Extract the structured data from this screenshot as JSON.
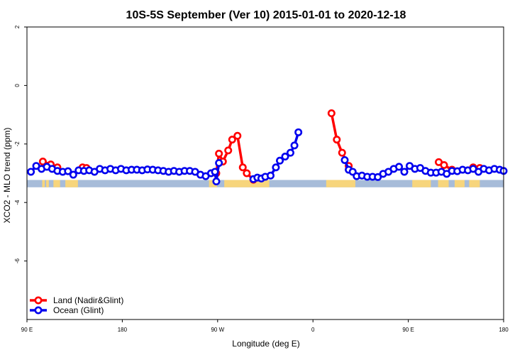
{
  "chart_data": {
    "type": "line",
    "title": "10S-5S September (Ver 10)   2015-01-01 to 2020-12-18",
    "xlabel": "Longitude (deg E)",
    "ylabel": "XCO2 - MLO trend (ppm)",
    "xlim": [
      90,
      450
    ],
    "ylim": [
      -8,
      2
    ],
    "x_ticks": [
      {
        "value": 90,
        "label": "90 E"
      },
      {
        "value": 162,
        "label": "180"
      },
      {
        "value": 234,
        "label": "90 W"
      },
      {
        "value": 306,
        "label": "0"
      },
      {
        "value": 378,
        "label": "90 E"
      },
      {
        "value": 450,
        "label": "180"
      }
    ],
    "y_ticks": [
      {
        "value": 2,
        "label": "2"
      },
      {
        "value": 0,
        "label": "0"
      },
      {
        "value": -2,
        "label": "-2"
      },
      {
        "value": -4,
        "label": "-4"
      },
      {
        "value": -6,
        "label": "-6"
      }
    ],
    "legend_position": "bottom-left",
    "map_strip": {
      "y_top": -3.23,
      "y_bottom": -3.48,
      "ocean_color": "#a7bcd9",
      "land_color": "#f7d57c",
      "land_ranges": [
        [
          101.5,
          103.5
        ],
        [
          104.5,
          106.5
        ],
        [
          110,
          115
        ],
        [
          119,
          128.5
        ],
        [
          227.5,
          233.5
        ],
        [
          239,
          273
        ],
        [
          316,
          338
        ],
        [
          381,
          395
        ],
        [
          400.5,
          408.5
        ],
        [
          413,
          420.5
        ],
        [
          424,
          432
        ]
      ]
    },
    "series": [
      {
        "name": "Land (Nadir&Glint)",
        "color": "#ff0000",
        "segments": [
          [
            [
              102,
              -2.6
            ],
            [
              108,
              -2.7
            ],
            [
              113,
              -2.8
            ]
          ],
          [
            [
              132,
              -2.8
            ],
            [
              135,
              -2.82
            ]
          ],
          [
            [
              233,
              -3.0
            ],
            [
              235,
              -2.33
            ],
            [
              238,
              -2.6
            ],
            [
              242,
              -2.22
            ],
            [
              245,
              -1.85
            ],
            [
              249,
              -1.72
            ],
            [
              253,
              -2.8
            ],
            [
              256,
              -3.0
            ],
            [
              261,
              -3.22
            ]
          ],
          [
            [
              320,
              -0.95
            ],
            [
              324,
              -1.85
            ],
            [
              328,
              -2.3
            ],
            [
              333,
              -2.75
            ]
          ],
          [
            [
              401,
              -2.62
            ],
            [
              405,
              -2.72
            ],
            [
              411,
              -2.88
            ]
          ],
          [
            [
              427,
              -2.8
            ],
            [
              432,
              -2.82
            ]
          ]
        ]
      },
      {
        "name": "Ocean (Glint)",
        "color": "#0000ee",
        "segments": [
          [
            [
              93,
              -2.95
            ],
            [
              97,
              -2.75
            ],
            [
              101,
              -2.85
            ],
            [
              105,
              -2.78
            ],
            [
              109,
              -2.85
            ],
            [
              113,
              -2.92
            ],
            [
              117,
              -2.95
            ],
            [
              121,
              -2.93
            ],
            [
              125,
              -3.05
            ],
            [
              129,
              -2.9
            ],
            [
              133,
              -2.92
            ],
            [
              137,
              -2.9
            ],
            [
              141,
              -2.95
            ],
            [
              145,
              -2.85
            ],
            [
              149,
              -2.9
            ],
            [
              153,
              -2.85
            ],
            [
              157,
              -2.9
            ],
            [
              161,
              -2.85
            ],
            [
              165,
              -2.9
            ],
            [
              169,
              -2.88
            ],
            [
              173,
              -2.88
            ],
            [
              177,
              -2.9
            ],
            [
              181,
              -2.87
            ],
            [
              185,
              -2.88
            ],
            [
              189,
              -2.9
            ],
            [
              193,
              -2.92
            ],
            [
              197,
              -2.95
            ],
            [
              201,
              -2.92
            ],
            [
              205,
              -2.95
            ],
            [
              209,
              -2.92
            ],
            [
              213,
              -2.92
            ],
            [
              217,
              -2.95
            ],
            [
              221,
              -3.05
            ],
            [
              225,
              -3.1
            ],
            [
              229,
              -3.0
            ],
            [
              232,
              -2.95
            ],
            [
              233,
              -3.28
            ],
            [
              235,
              -2.65
            ]
          ],
          [
            [
              261,
              -3.2
            ],
            [
              264,
              -3.15
            ],
            [
              267,
              -3.18
            ],
            [
              270,
              -3.12
            ],
            [
              274,
              -3.08
            ],
            [
              278,
              -2.8
            ],
            [
              281,
              -2.57
            ],
            [
              285,
              -2.43
            ],
            [
              289,
              -2.3
            ],
            [
              292,
              -2.05
            ],
            [
              295,
              -1.6
            ]
          ],
          [
            [
              330,
              -2.55
            ],
            [
              333,
              -2.88
            ],
            [
              336,
              -2.95
            ],
            [
              339,
              -3.1
            ],
            [
              343,
              -3.08
            ],
            [
              347,
              -3.12
            ],
            [
              351,
              -3.12
            ],
            [
              355,
              -3.13
            ],
            [
              359,
              -3.02
            ],
            [
              363,
              -2.95
            ],
            [
              367,
              -2.85
            ],
            [
              371,
              -2.78
            ],
            [
              375,
              -2.95
            ],
            [
              379,
              -2.75
            ],
            [
              383,
              -2.85
            ],
            [
              387,
              -2.82
            ],
            [
              391,
              -2.92
            ],
            [
              395,
              -2.98
            ],
            [
              399,
              -2.98
            ],
            [
              403,
              -2.95
            ],
            [
              407,
              -3.02
            ],
            [
              411,
              -2.92
            ],
            [
              415,
              -2.93
            ],
            [
              419,
              -2.88
            ],
            [
              423,
              -2.9
            ],
            [
              427,
              -2.85
            ],
            [
              431,
              -2.95
            ],
            [
              435,
              -2.85
            ],
            [
              439,
              -2.9
            ],
            [
              443,
              -2.85
            ],
            [
              447,
              -2.88
            ],
            [
              450,
              -2.92
            ]
          ]
        ]
      }
    ]
  }
}
